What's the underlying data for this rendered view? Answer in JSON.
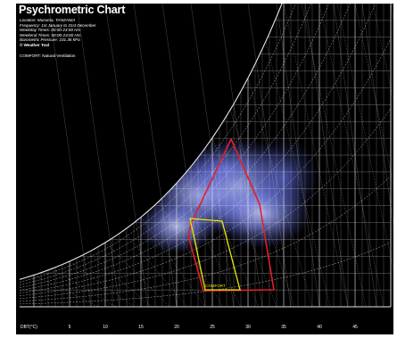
{
  "chart_data": {
    "type": "psychrometric",
    "title": "Psychrometric Chart",
    "info_lines": {
      "location": "Location: Musoma, TANZANIA",
      "frequency": "Frequency: 1st January to 31st December",
      "weekday": "Weekday Times: 00:00-24:00 Hrs",
      "weekend": "Weekend Times: 00:00-24:00 Hrs",
      "pressure": "Barometric Pressure: 101.36 kPa",
      "weather": "© Weather Tool",
      "comfort": "COMFORT: Natural Ventilation"
    },
    "xlabel": "DBT(°C)",
    "x_ticks": [
      5,
      10,
      15,
      20,
      25,
      30,
      35,
      40,
      45
    ],
    "xlim": [
      -2,
      50
    ],
    "rh_curves_percent": [
      10,
      20,
      30,
      40,
      50,
      60,
      70,
      80,
      90,
      100
    ],
    "comfort_zone_label": "COMFORT",
    "colors": {
      "background": "#000000",
      "grid": "#e8e8e8",
      "natural_ventilation_zone": "#e0202a",
      "comfort_zone": "#e8e800",
      "climate_data": "#8c98ff",
      "text": "#ffffff"
    }
  }
}
